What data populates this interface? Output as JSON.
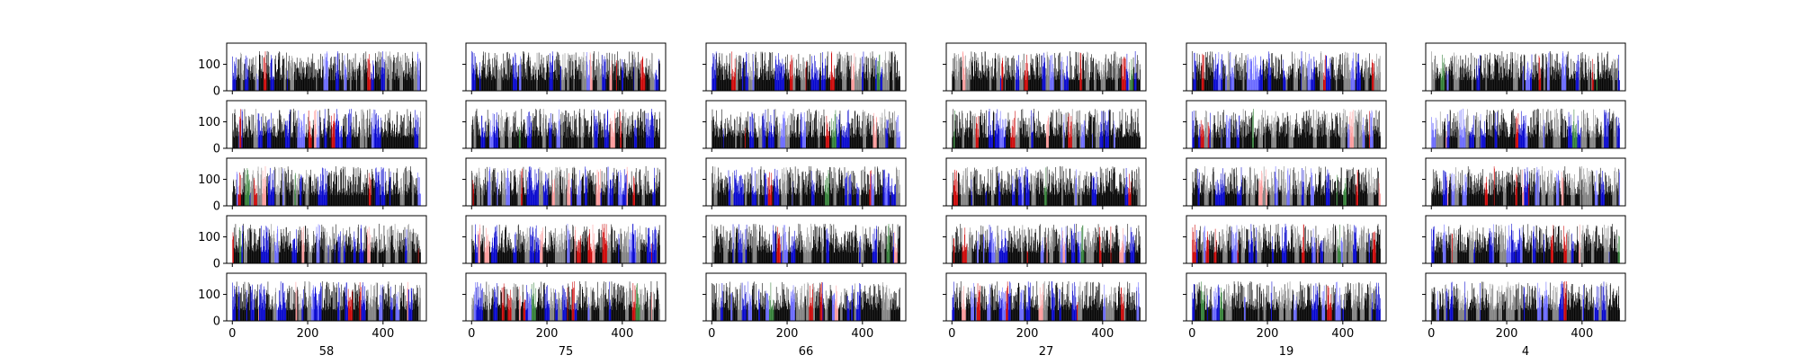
{
  "chart_data": {
    "type": "bar",
    "grid": false,
    "legend": "none",
    "layout": {
      "rows": 5,
      "cols": 6
    },
    "xlim": [
      -15,
      515
    ],
    "ylim": [
      0,
      180
    ],
    "x_ticks": [
      0,
      200,
      400
    ],
    "x_tick_labels": [
      "0",
      "200",
      "400"
    ],
    "y_ticks": [
      0,
      100
    ],
    "y_tick_labels": [
      "0",
      "100"
    ],
    "bar_count_per_panel": 500,
    "bar_value_range": [
      40,
      150
    ],
    "column_xlabels": [
      "58",
      "75",
      "66",
      "27",
      "19",
      "4"
    ],
    "colors": {
      "bar_dominant": "#000000",
      "bar_gray": "#808080",
      "bar_blue": "#0000cc",
      "bar_light_blue": "#6666ff",
      "bar_red": "#cc0000",
      "bar_pink": "#ff9999",
      "bar_green": "#2e7d32",
      "axes": "#000000",
      "background": "#ffffff"
    }
  }
}
